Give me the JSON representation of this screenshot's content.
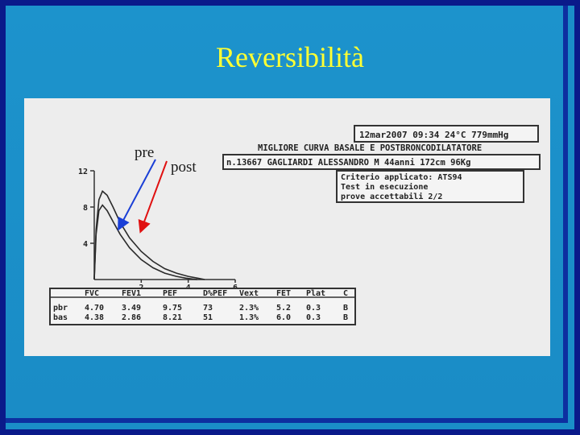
{
  "title": "Reversibilità",
  "annotations": {
    "pre": "pre",
    "post": "post"
  },
  "report": {
    "header_line": "12mar2007 09:34 24°C 779mmHg",
    "curve_title": "MIGLIORE CURVA BASALE E POSTBRONCODILATATORE",
    "patient": "n.13667 GAGLIARDI ALESSANDRO M 44anni 172cm 96Kg",
    "criteria": [
      "Criterio applicato: ATS94",
      "Test in esecuzione",
      "prove accettabili 2/2"
    ]
  },
  "results_table": {
    "columns": [
      "",
      "FVC",
      "FEV1",
      "PEF",
      "D%PEF",
      "Vext",
      "FET",
      "Plat",
      "C"
    ],
    "rows": [
      [
        "pbr",
        "4.70",
        "3.49",
        "9.75",
        "73",
        "2.3%",
        "5.2",
        "0.3",
        "B"
      ],
      [
        "bas",
        "4.38",
        "2.86",
        "8.21",
        "51",
        "1.3%",
        "6.0",
        "0.3",
        "B"
      ]
    ]
  },
  "colors": {
    "background": "#1a8ec8",
    "title": "#ffff33",
    "pre_arrow": "#1a3fd6",
    "post_arrow": "#e01010"
  },
  "chart_data": {
    "type": "line",
    "title": "",
    "xlabel": "",
    "ylabel": "",
    "xlim": [
      0,
      6
    ],
    "ylim": [
      0,
      12
    ],
    "x_ticks": [
      2,
      4,
      6
    ],
    "y_ticks": [
      4,
      8,
      12
    ],
    "grid": false,
    "series": [
      {
        "x": [
          0,
          0.08,
          0.2,
          0.35,
          0.55,
          0.8,
          1.1,
          1.5,
          2.0,
          2.5,
          3.0,
          3.5,
          4.0,
          4.4,
          4.7
        ],
        "y": [
          0,
          5.5,
          8.8,
          9.75,
          9.3,
          8.0,
          6.3,
          4.6,
          3.1,
          2.0,
          1.2,
          0.7,
          0.35,
          0.15,
          0
        ]
      },
      {
        "x": [
          0,
          0.08,
          0.2,
          0.35,
          0.55,
          0.8,
          1.1,
          1.5,
          2.0,
          2.5,
          3.0,
          3.5,
          3.9,
          4.2,
          4.38
        ],
        "y": [
          0,
          5.0,
          7.6,
          8.21,
          7.6,
          6.4,
          5.0,
          3.5,
          2.2,
          1.3,
          0.7,
          0.35,
          0.15,
          0.05,
          0
        ]
      }
    ]
  }
}
